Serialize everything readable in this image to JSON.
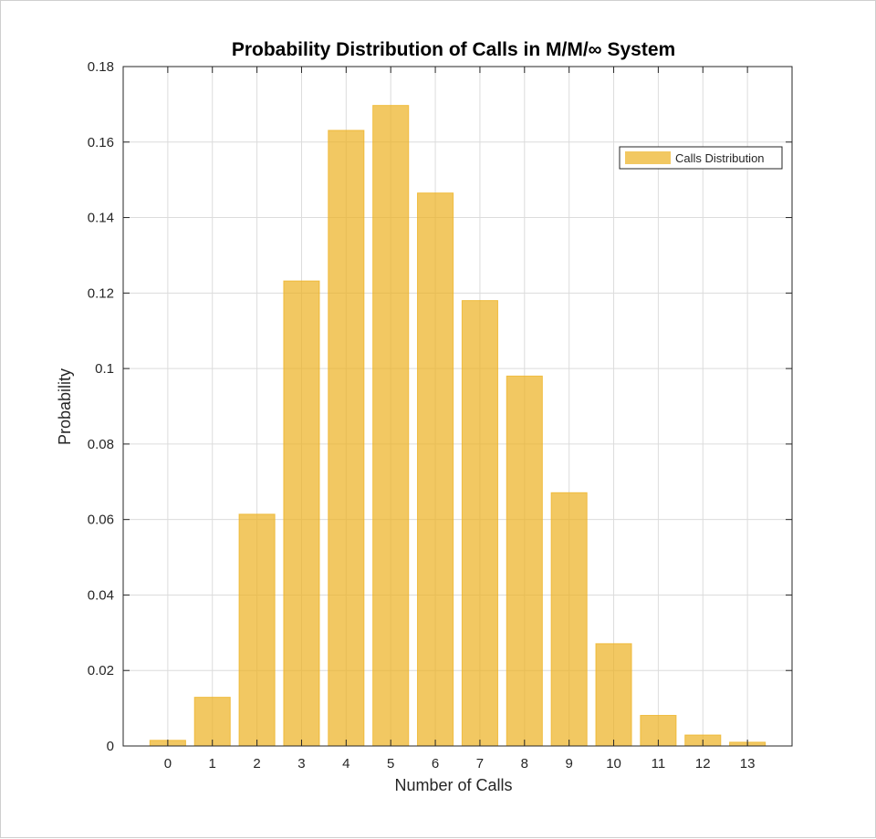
{
  "chart_data": {
    "type": "bar",
    "title": "Probability Distribution of Calls in M/M/∞ System",
    "xlabel": "Number of Calls",
    "ylabel": "Probability",
    "categories": [
      "0",
      "1",
      "2",
      "3",
      "4",
      "5",
      "6",
      "7",
      "8",
      "9",
      "10",
      "11",
      "12",
      "13"
    ],
    "series": [
      {
        "name": "Calls Distribution",
        "color": "#EDB120",
        "values": [
          0.0015,
          0.0129,
          0.0614,
          0.1232,
          0.1631,
          0.1697,
          0.1465,
          0.118,
          0.098,
          0.0671,
          0.0271,
          0.0081,
          0.0029,
          0.001
        ]
      }
    ],
    "ylim": [
      0,
      0.18
    ],
    "yticks": [
      "0",
      "0.02",
      "0.04",
      "0.06",
      "0.08",
      "0.1",
      "0.12",
      "0.14",
      "0.16",
      "0.18"
    ],
    "grid": true,
    "legend_position": "top-right"
  }
}
